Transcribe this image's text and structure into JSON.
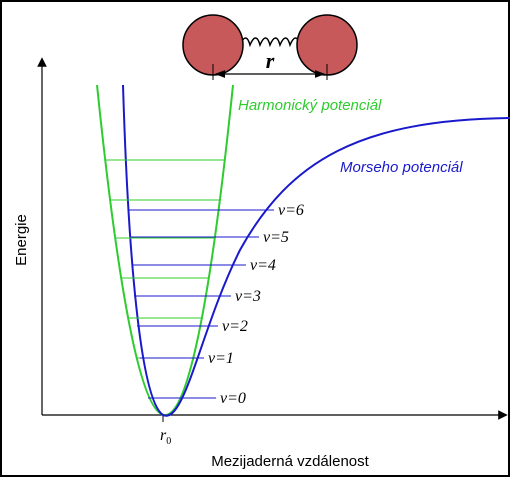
{
  "molecule": {
    "distance_label": "r"
  },
  "curves": {
    "harmonic": "Harmonický potenciál",
    "morse": "Morseho potenciál"
  },
  "levels": [
    "v=0",
    "v=1",
    "v=2",
    "v=3",
    "v=4",
    "v=5",
    "v=6"
  ],
  "axes": {
    "y_label": "Energie",
    "x_label": "Mezijaderná vzdálenost",
    "r0": {
      "symbol": "r",
      "subscript": "0"
    }
  }
}
